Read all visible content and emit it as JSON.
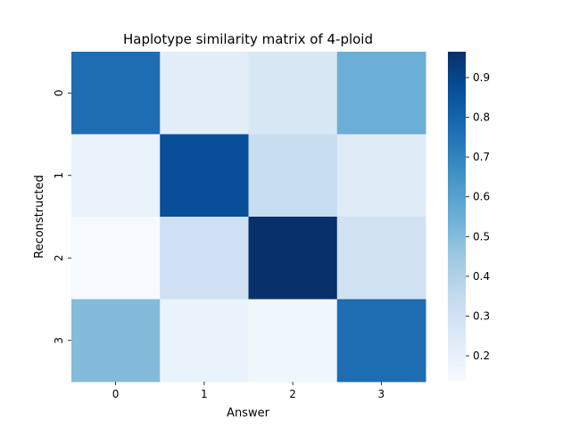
{
  "chart_data": {
    "type": "heatmap",
    "title": "Haplotype similarity matrix of 4-ploid",
    "xlabel": "Answer",
    "ylabel": "Reconstructed",
    "x_categories": [
      "0",
      "1",
      "2",
      "3"
    ],
    "y_categories": [
      "0",
      "1",
      "2",
      "3"
    ],
    "values": [
      [
        0.77,
        0.22,
        0.26,
        0.55
      ],
      [
        0.19,
        0.87,
        0.33,
        0.24
      ],
      [
        0.14,
        0.31,
        0.97,
        0.3
      ],
      [
        0.5,
        0.19,
        0.17,
        0.77
      ]
    ],
    "colorbar": {
      "min": 0.135,
      "max": 0.965,
      "ticks": [
        0.2,
        0.3,
        0.4,
        0.5,
        0.6,
        0.7,
        0.8,
        0.9
      ],
      "tick_labels": [
        "0.2",
        "0.3",
        "0.4",
        "0.5",
        "0.6",
        "0.7",
        "0.8",
        "0.9"
      ],
      "colormap": "Blues"
    },
    "grid": false
  }
}
